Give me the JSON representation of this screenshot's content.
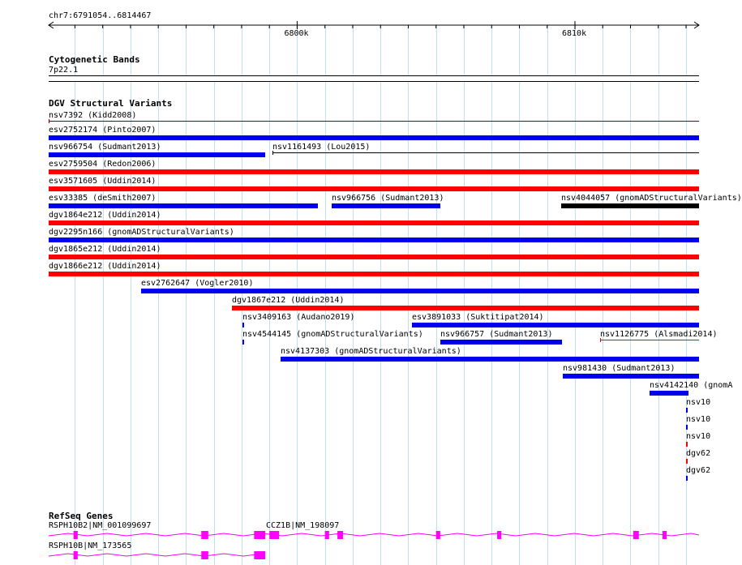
{
  "ruler": {
    "location": "chr7:6791054..6814467",
    "ticks": [
      {
        "label": "6800k",
        "pos": 6800000
      },
      {
        "label": "6810k",
        "pos": 6810000
      }
    ]
  },
  "cyto": {
    "title": "Cytogenetic Bands",
    "band": "7p22.1"
  },
  "dgv": {
    "title": "DGV Structural Variants",
    "colors": {
      "gain": "#0000ee",
      "loss": "#ff0000",
      "complex": "#000000",
      "other": "#800000"
    },
    "features": [
      {
        "label": "nsv7392 (Kidd2008)",
        "type": "other",
        "thin": true,
        "start": 6791054,
        "end": 6814467
      },
      {
        "label": "esv2752174 (Pinto2007)",
        "type": "gain",
        "start": 6791054,
        "end": 6814467
      },
      {
        "label": "nsv966754 (Sudmant2013)",
        "type": "gain",
        "start": 6791054,
        "end": 6798860
      },
      {
        "label": "nsv1161493 (Lou2015)",
        "type": "complex",
        "thin": true,
        "start": 6799100,
        "end": 6814467
      },
      {
        "label": "esv2759504 (Redon2006)",
        "type": "loss",
        "start": 6791054,
        "end": 6814467
      },
      {
        "label": "esv3571605 (Uddin2014)",
        "type": "loss",
        "start": 6791054,
        "end": 6814467
      },
      {
        "label": "esv33385 (deSmith2007)",
        "type": "gain",
        "start": 6791054,
        "end": 6800750
      },
      {
        "label": "nsv966756 (Sudmant2013)",
        "type": "gain",
        "start": 6801250,
        "end": 6805170
      },
      {
        "label": "nsv4044057 (gnomADStructuralVariants)",
        "type": "complex",
        "start": 6809500,
        "end": 6814467
      },
      {
        "label": "dgv1864e212 (Uddin2014)",
        "type": "loss",
        "start": 6791054,
        "end": 6814467
      },
      {
        "label": "dgv2295n166 (gnomADStructuralVariants)",
        "type": "gain",
        "start": 6791054,
        "end": 6814467
      },
      {
        "label": "dgv1865e212 (Uddin2014)",
        "type": "loss",
        "start": 6791054,
        "end": 6814467
      },
      {
        "label": "dgv1866e212 (Uddin2014)",
        "type": "loss",
        "start": 6791054,
        "end": 6814467
      },
      {
        "label": "esv2762647 (Vogler2010)",
        "type": "gain",
        "start": 6794370,
        "end": 6814467
      },
      {
        "label": "dgv1867e212 (Uddin2014)",
        "type": "loss",
        "start": 6797650,
        "end": 6814467
      },
      {
        "label": "nsv3409163 (Audano2019)",
        "type": "gain",
        "start": 6798030,
        "end": 6798090
      },
      {
        "label": "esv3891033 (Suktitipat2014)",
        "type": "gain",
        "start": 6804130,
        "end": 6814467
      },
      {
        "label": "nsv4544145 (gnomADStructuralVariants)",
        "type": "gain",
        "start": 6798030,
        "end": 6798090
      },
      {
        "label": "nsv966757 (Sudmant2013)",
        "type": "gain",
        "start": 6805140,
        "end": 6809520
      },
      {
        "label": "nsv1126775 (Alsmadi2014)",
        "type": "loss",
        "thin": true,
        "start": 6810900,
        "end": 6814467
      },
      {
        "label": "nsv4137303 (gnomADStructuralVariants)",
        "type": "gain",
        "start": 6799400,
        "end": 6814467
      },
      {
        "label": "nsv981430 (Sudmant2013)",
        "type": "gain",
        "start": 6809550,
        "end": 6814467
      },
      {
        "label": "nsv4142140 (gnomA",
        "type": "gain",
        "start": 6812700,
        "end": 6814100
      },
      {
        "label": "nsv10",
        "type": "gain",
        "start": 6814000,
        "end": 6814060
      },
      {
        "label": "nsv10",
        "type": "gain",
        "start": 6814000,
        "end": 6814060
      },
      {
        "label": "nsv10",
        "type": "loss",
        "start": 6814000,
        "end": 6814060
      },
      {
        "label": "dgv62",
        "type": "loss",
        "start": 6814000,
        "end": 6814060
      },
      {
        "label": "dgv62",
        "type": "gain",
        "start": 6814000,
        "end": 6814060
      }
    ]
  },
  "refseq": {
    "title": "RefSeq Genes",
    "color": "#ff00ff",
    "genes": [
      {
        "label": "RSPH10B2|NM_001099697",
        "start": 6791054,
        "end": 6814467,
        "exons": [
          [
            6791950,
            6792100
          ],
          [
            6796550,
            6796800
          ],
          [
            6798450,
            6798850
          ],
          [
            6799000,
            6799350
          ],
          [
            6801000,
            6801150
          ],
          [
            6801450,
            6801650
          ],
          [
            6805000,
            6805150
          ],
          [
            6807200,
            6807350
          ],
          [
            6812100,
            6812300
          ],
          [
            6813150,
            6813300
          ]
        ]
      },
      {
        "label": "CCZ1B|NM_198097",
        "start": 6799000,
        "end": 6814467,
        "exons": []
      },
      {
        "label": "RSPH10B|NM_173565",
        "start": 6791054,
        "end": 6798850,
        "exons": [
          [
            6791950,
            6792100
          ],
          [
            6796550,
            6796800
          ],
          [
            6798450,
            6798850
          ]
        ]
      }
    ]
  }
}
